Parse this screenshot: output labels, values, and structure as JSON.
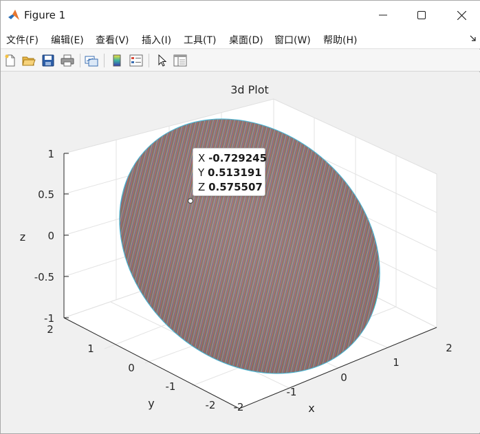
{
  "window": {
    "title": "Figure 1"
  },
  "menu": [
    "文件(F)",
    "编辑(E)",
    "查看(V)",
    "插入(I)",
    "工具(T)",
    "桌面(D)",
    "窗口(W)",
    "帮助(H)"
  ],
  "toolbar": {
    "icons": [
      "new-figure-icon",
      "open-file-icon",
      "save-icon",
      "print-icon",
      "link-plot-icon",
      "colorbar-icon",
      "legend-icon",
      "pointer-icon",
      "property-inspector-icon"
    ]
  },
  "plot": {
    "title": "3d Plot",
    "xlabel": "x",
    "ylabel": "y",
    "zlabel": "z",
    "xticks": [
      "-2",
      "-1",
      "0",
      "1",
      "2"
    ],
    "yticks": [
      "-2",
      "-1",
      "0",
      "1",
      "2"
    ],
    "zticks": [
      "-1",
      "-0.5",
      "0",
      "0.5",
      "1"
    ],
    "datatip": {
      "x_label": "X",
      "x_value": "-0.729245",
      "y_label": "Y",
      "y_value": "0.513191",
      "z_label": "Z",
      "z_value": "0.575507"
    }
  },
  "chart_data": {
    "type": "surface",
    "title": "3d Plot",
    "xlabel": "x",
    "ylabel": "y",
    "zlabel": "z",
    "xlim": [
      -2,
      2
    ],
    "ylim": [
      -2,
      2
    ],
    "zlim": [
      -1,
      1
    ],
    "grid": true,
    "datatip_point": {
      "x": -0.729245,
      "y": 0.513191,
      "z": 0.575507
    }
  }
}
